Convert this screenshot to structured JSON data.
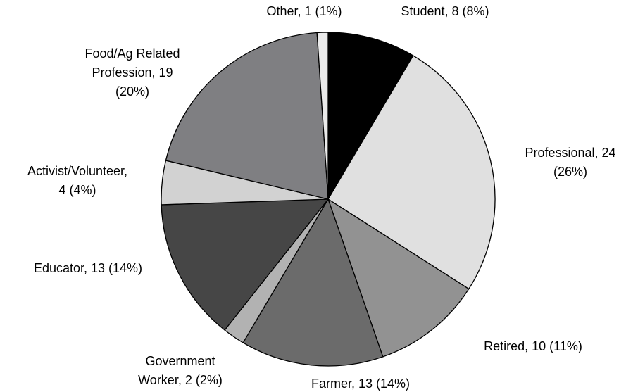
{
  "chart_data": {
    "type": "pie",
    "values": [
      8,
      24,
      10,
      13,
      2,
      13,
      4,
      19,
      1
    ],
    "labels": [
      [
        "Student, 8 (8%)"
      ],
      [
        "Professional, 24",
        "(26%)"
      ],
      [
        "Retired, 10 (11%)"
      ],
      [
        "Farmer, 13 (14%)"
      ],
      [
        "Government",
        "Worker, 2 (2%)"
      ],
      [
        "Educator, 13 (14%)"
      ],
      [
        "Activist/Volunteer,",
        "4 (4%)"
      ],
      [
        "Food/Ag Related",
        "Profession, 19",
        "(20%)"
      ],
      [
        "Other, 1 (1%)"
      ]
    ],
    "colors": [
      "#000000",
      "#e0e0e0",
      "#929292",
      "#6b6b6b",
      "#b2b2b2",
      "#464646",
      "#d2d2d2",
      "#7f7f82",
      "#eaeaea"
    ]
  }
}
